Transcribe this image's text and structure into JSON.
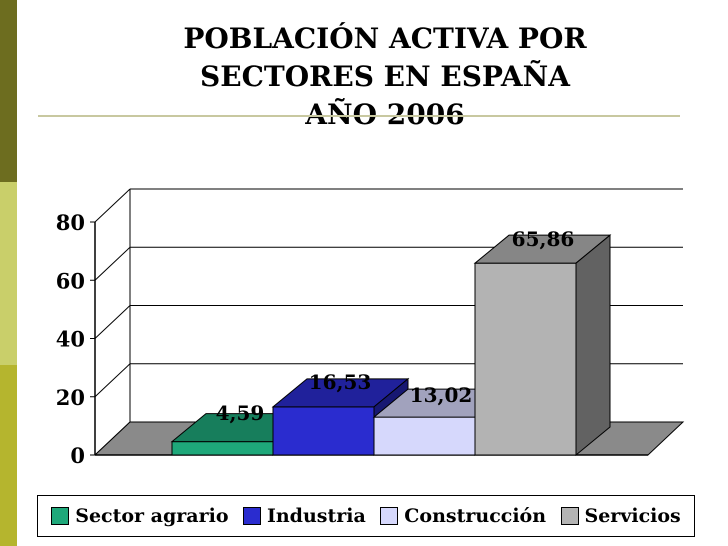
{
  "chart_data": {
    "type": "bar",
    "title": "POBLACIÓN ACTIVA POR SECTORES EN ESPAÑA AÑO 2006",
    "title_lines": [
      "POBLACIÓN ACTIVA POR",
      "SECTORES EN ESPAÑA",
      "AÑO 2006"
    ],
    "categories": [
      "Sector agrario",
      "Industria",
      "Construcción",
      "Servicios"
    ],
    "values": [
      4.59,
      16.53,
      13.02,
      65.86
    ],
    "data_labels": [
      "4,59",
      "16,53",
      "13,02",
      "65,86"
    ],
    "colors": [
      "#1ea87a",
      "#2a2ccf",
      "#d6d8fc",
      "#b3b3b3"
    ],
    "ylim": [
      0,
      80
    ],
    "yticks": [
      0,
      20,
      40,
      60,
      80
    ],
    "ytick_labels": [
      "0",
      "20",
      "40",
      "60",
      "80"
    ],
    "grid": true,
    "view": "3d",
    "legend_position": "bottom"
  },
  "colors": {
    "side_bar": [
      "#6d6d1f",
      "#c9cf6a",
      "#b5b52e"
    ],
    "floor": "#8a8a8a",
    "rule": "#c8c8a0"
  }
}
